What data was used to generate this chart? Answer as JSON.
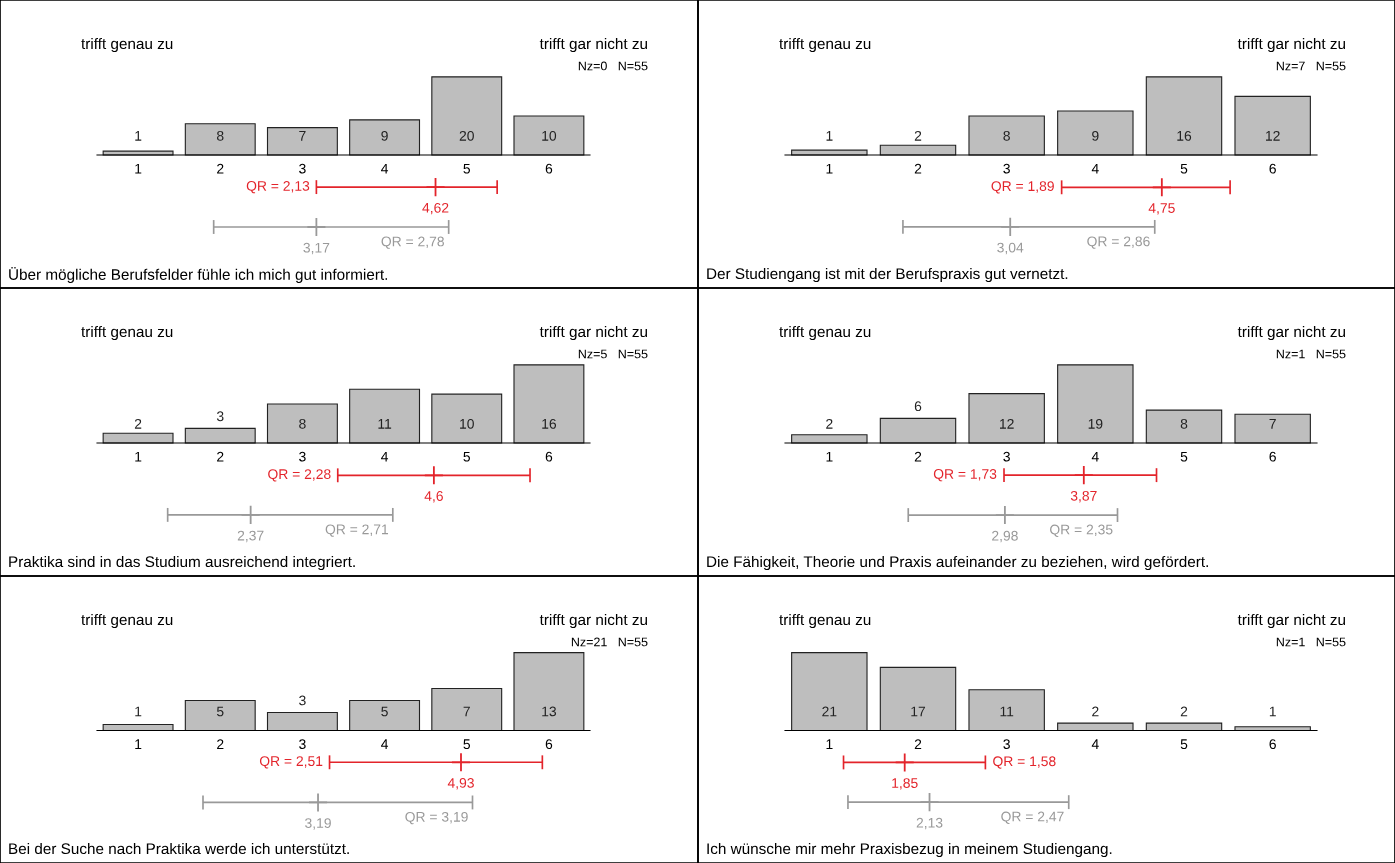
{
  "chart_data": [
    {
      "type": "bar",
      "title": "Über mögliche Berufsfelder fühle ich mich gut informiert.",
      "annotations": [
        "trifft genau zu",
        "trifft gar nicht zu",
        "Nz=0   N=55",
        {
          "text": "4,62",
          "x": 4.62,
          "y": -8.2
        },
        {
          "text": "3,17",
          "x": 3.17,
          "y": -18.4
        }
      ],
      "x": [
        1,
        2,
        3,
        4,
        5,
        6
      ],
      "xlim": [
        0.5,
        6.5
      ],
      "xticks": [
        1,
        2,
        3,
        4,
        5,
        6
      ],
      "tick_labels": "x",
      "marker": "cross",
      "series": [
        {
          "color": "#bebebe",
          "values": [
            1,
            8,
            7,
            9,
            20,
            10
          ],
          "value_labels": [
            "1",
            "8",
            "7",
            "9",
            "20",
            "10"
          ]
        },
        {
          "type": "scatter",
          "name": "QR = 2,13",
          "color": "#e3242b",
          "x": [
            4.62
          ],
          "values": [
            -8.2
          ],
          "xerrors": [
            [
              3.17,
              5.37
            ]
          ]
        },
        {
          "type": "scatter",
          "name": "QR = 2,78",
          "color": "#999999",
          "x": [
            3.17
          ],
          "values": [
            -18.4
          ],
          "xerrors": [
            [
              1.92,
              4.78
            ]
          ]
        }
      ]
    },
    {
      "type": "bar",
      "title": "Der Studiengang ist mit der Berufspraxis gut vernetzt.",
      "annotations": [
        "trifft genau zu",
        "trifft gar nicht zu",
        "Nz=7   N=55",
        {
          "text": "4,75",
          "x": 4.75,
          "y": -6.6
        },
        {
          "text": "3,04",
          "x": 3.04,
          "y": -14.7
        }
      ],
      "x": [
        1,
        2,
        3,
        4,
        5,
        6
      ],
      "xlim": [
        0.5,
        6.5
      ],
      "xticks": [
        1,
        2,
        3,
        4,
        5,
        6
      ],
      "tick_labels": "x",
      "marker": "cross",
      "series": [
        {
          "color": "#bebebe",
          "values": [
            1,
            2,
            8,
            9,
            16,
            12
          ],
          "value_labels": [
            "1",
            "2",
            "8",
            "9",
            "16",
            "12"
          ]
        },
        {
          "type": "scatter",
          "name": "QR = 1,89",
          "color": "#e3242b",
          "x": [
            4.75
          ],
          "values": [
            -6.6
          ],
          "xerrors": [
            [
              3.62,
              5.52
            ]
          ]
        },
        {
          "type": "scatter",
          "name": "QR = 2,86",
          "color": "#999999",
          "x": [
            3.04
          ],
          "values": [
            -14.7
          ],
          "xerrors": [
            [
              1.83,
              4.67
            ]
          ]
        }
      ]
    },
    {
      "type": "bar",
      "title": "Praktika sind in das Studium ausreichend integriert.",
      "annotations": [
        "trifft genau zu",
        "trifft gar nicht zu",
        "Nz=5   N=55",
        {
          "text": "4,6",
          "x": 4.6,
          "y": -6.6
        },
        {
          "text": "2,37",
          "x": 2.37,
          "y": -14.7
        }
      ],
      "x": [
        1,
        2,
        3,
        4,
        5,
        6
      ],
      "xlim": [
        0.5,
        6.5
      ],
      "xticks": [
        1,
        2,
        3,
        4,
        5,
        6
      ],
      "tick_labels": "x",
      "marker": "cross",
      "series": [
        {
          "color": "#bebebe",
          "values": [
            2,
            3,
            8,
            11,
            10,
            16
          ],
          "value_labels": [
            "2",
            "3",
            "8",
            "11",
            "10",
            "16"
          ]
        },
        {
          "type": "scatter",
          "name": "QR = 2,28",
          "color": "#e3242b",
          "x": [
            4.6
          ],
          "values": [
            -6.6
          ],
          "xerrors": [
            [
              3.43,
              5.77
            ]
          ]
        },
        {
          "type": "scatter",
          "name": "QR = 2,71",
          "color": "#999999",
          "x": [
            2.37
          ],
          "values": [
            -14.7
          ],
          "xerrors": [
            [
              1.36,
              4.1
            ]
          ]
        }
      ]
    },
    {
      "type": "bar",
      "title": "Die Fähigkeit, Theorie und Praxis aufeinander zu beziehen, wird gefördert.",
      "annotations": [
        "trifft genau zu",
        "trifft gar nicht zu",
        "Nz=1   N=55",
        {
          "text": "3,87",
          "x": 3.87,
          "y": -7.8
        },
        {
          "text": "2,98",
          "x": 2.98,
          "y": -17.5
        }
      ],
      "x": [
        1,
        2,
        3,
        4,
        5,
        6
      ],
      "xlim": [
        0.5,
        6.5
      ],
      "xticks": [
        1,
        2,
        3,
        4,
        5,
        6
      ],
      "tick_labels": "x",
      "marker": "cross",
      "series": [
        {
          "color": "#bebebe",
          "values": [
            2,
            6,
            12,
            19,
            8,
            7
          ],
          "value_labels": [
            "2",
            "6",
            "12",
            "19",
            "8",
            "7"
          ]
        },
        {
          "type": "scatter",
          "name": "QR = 1,73",
          "color": "#e3242b",
          "x": [
            3.87
          ],
          "values": [
            -7.8
          ],
          "xerrors": [
            [
              2.97,
              4.69
            ]
          ]
        },
        {
          "type": "scatter",
          "name": "QR = 2,35",
          "color": "#999999",
          "x": [
            2.98
          ],
          "values": [
            -17.5
          ],
          "xerrors": [
            [
              1.89,
              4.25
            ]
          ]
        }
      ]
    },
    {
      "type": "bar",
      "title": "Bei der Suche nach Praktika werde ich unterstützt.",
      "annotations": [
        "trifft genau zu",
        "trifft gar nicht zu",
        "Nz=21   N=55",
        {
          "text": "4,93",
          "x": 4.93,
          "y": -5.3
        },
        {
          "text": "3,19",
          "x": 3.19,
          "y": -12
        }
      ],
      "x": [
        1,
        2,
        3,
        4,
        5,
        6
      ],
      "xlim": [
        0.5,
        6.5
      ],
      "xticks": [
        1,
        2,
        3,
        4,
        5,
        6
      ],
      "tick_labels": "x",
      "marker": "cross",
      "series": [
        {
          "color": "#bebebe",
          "values": [
            1,
            5,
            3,
            5,
            7,
            13
          ],
          "value_labels": [
            "1",
            "5",
            "3",
            "5",
            "7",
            "13"
          ]
        },
        {
          "type": "scatter",
          "name": "QR = 2,51",
          "color": "#e3242b",
          "x": [
            4.93
          ],
          "values": [
            -5.3
          ],
          "xerrors": [
            [
              3.33,
              5.92
            ]
          ]
        },
        {
          "type": "scatter",
          "name": "QR = 3,19",
          "color": "#999999",
          "x": [
            3.19
          ],
          "values": [
            -12
          ],
          "xerrors": [
            [
              1.79,
              5.07
            ]
          ]
        }
      ]
    },
    {
      "type": "bar",
      "title": "Ich wünsche mir mehr Praxisbezug in meinem Studiengang.",
      "annotations": [
        "trifft genau zu",
        "trifft gar nicht zu",
        "Nz=1   N=55",
        {
          "text": "1,85",
          "x": 1.85,
          "y": -8.6
        },
        {
          "text": "2,13",
          "x": 2.13,
          "y": -19.3
        }
      ],
      "x": [
        1,
        2,
        3,
        4,
        5,
        6
      ],
      "xlim": [
        0.5,
        6.5
      ],
      "xticks": [
        1,
        2,
        3,
        4,
        5,
        6
      ],
      "tick_labels": "x",
      "marker": "cross",
      "series": [
        {
          "color": "#bebebe",
          "values": [
            21,
            17,
            11,
            2,
            2,
            1
          ],
          "value_labels": [
            "21",
            "17",
            "11",
            "2",
            "2",
            "1"
          ]
        },
        {
          "type": "scatter",
          "name": "QR = 1,58",
          "color": "#e3242b",
          "x": [
            1.85
          ],
          "values": [
            -8.6
          ],
          "xerrors": [
            [
              1.16,
              2.76
            ]
          ]
        },
        {
          "type": "scatter",
          "name": "QR = 2,47",
          "color": "#999999",
          "x": [
            2.13
          ],
          "values": [
            -19.3
          ],
          "xerrors": [
            [
              1.21,
              3.7
            ]
          ]
        }
      ]
    }
  ]
}
